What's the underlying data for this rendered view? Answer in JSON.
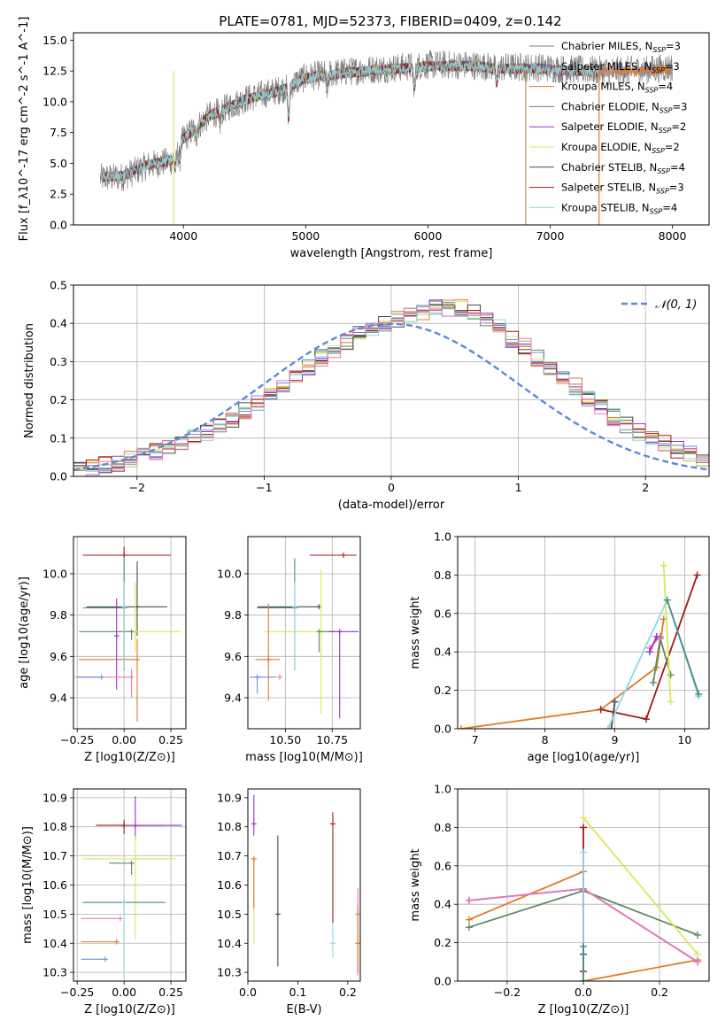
{
  "figure": {
    "title": "PLATE=0781, MJD=52373, FIBERID=0409, z=0.142"
  },
  "colors": {
    "Chabrier MILES": "#7f7f7f",
    "Salpeter MILES": "#6a8fd8",
    "Kroupa MILES": "#e07b28",
    "Chabrier ELODIE": "#5f8a62",
    "Salpeter ELODIE": "#9b30c8",
    "Kroupa ELODIE": "#d9e85a",
    "Chabrier STELIB": "#4a4a4a",
    "Salpeter STELIB": "#a01818",
    "Kroupa STELIB": "#8fd9e0",
    "pink": "#e67bb5"
  },
  "chart_data": [
    {
      "id": "spectrum",
      "type": "line",
      "xlabel": "wavelength [Angstrom, rest frame]",
      "ylabel": "Flux [f_λ10^-17 erg cm^-2 s^-1 A^-1]",
      "xlim": [
        3100,
        8300
      ],
      "ylim": [
        0,
        15.6
      ],
      "xticks": [
        4000,
        5000,
        6000,
        7000,
        8000
      ],
      "yticks": [
        0.0,
        2.5,
        5.0,
        7.5,
        10.0,
        12.5,
        15.0
      ],
      "legend_position": "top-right",
      "grid": false,
      "legend": [
        {
          "name": "Chabrier MILES",
          "subscript": "SSP",
          "n": "=3"
        },
        {
          "name": "Salpeter MILES",
          "subscript": "SSP",
          "n": "=3"
        },
        {
          "name": "Kroupa MILES",
          "subscript": "SSP",
          "n": "=4"
        },
        {
          "name": "Chabrier ELODIE",
          "subscript": "SSP",
          "n": "=3"
        },
        {
          "name": "Salpeter ELODIE",
          "subscript": "SSP",
          "n": "=2"
        },
        {
          "name": "Kroupa ELODIE",
          "subscript": "SSP",
          "n": "=2"
        },
        {
          "name": "Chabrier STELIB",
          "subscript": "SSP",
          "n": "=4"
        },
        {
          "name": "Salpeter STELIB",
          "subscript": "SSP",
          "n": "=3"
        },
        {
          "name": "Kroupa STELIB",
          "subscript": "SSP",
          "n": "=4"
        }
      ],
      "continuum": {
        "x": [
          3320,
          3500,
          3700,
          3900,
          4000,
          4200,
          4500,
          4800,
          5000,
          5200,
          5500,
          5800,
          6000,
          6300,
          6600,
          6900,
          7200,
          7500,
          7800,
          8000
        ],
        "y": [
          3.8,
          3.9,
          4.8,
          5.2,
          7.0,
          8.8,
          10.2,
          11.0,
          12.0,
          12.3,
          12.6,
          12.8,
          13.0,
          13.0,
          12.8,
          12.8,
          12.6,
          12.5,
          12.6,
          12.8
        ]
      },
      "drop_lines_x": [
        3920,
        6800,
        7400
      ]
    },
    {
      "id": "residuals",
      "type": "histogram",
      "xlabel": "(data-model)/error",
      "ylabel": "Normed distribution",
      "xlim": [
        -2.5,
        2.5
      ],
      "ylim": [
        0,
        0.5
      ],
      "xticks": [
        -2,
        -1,
        0,
        1,
        2
      ],
      "yticks": [
        0.0,
        0.1,
        0.2,
        0.3,
        0.4,
        0.5
      ],
      "grid": true,
      "legend_position": "top-right",
      "legend": [
        {
          "name": "N(0,1)",
          "style": "dashed",
          "color": "#5b8bd6"
        }
      ],
      "bin_width": 0.1,
      "bin_start": -2.5,
      "base_values": [
        0.02,
        0.022,
        0.03,
        0.035,
        0.045,
        0.055,
        0.065,
        0.075,
        0.085,
        0.1,
        0.115,
        0.13,
        0.15,
        0.17,
        0.19,
        0.21,
        0.235,
        0.26,
        0.285,
        0.31,
        0.33,
        0.35,
        0.37,
        0.385,
        0.4,
        0.41,
        0.42,
        0.43,
        0.44,
        0.44,
        0.44,
        0.43,
        0.41,
        0.39,
        0.36,
        0.34,
        0.31,
        0.285,
        0.26,
        0.235,
        0.2,
        0.18,
        0.155,
        0.135,
        0.115,
        0.1,
        0.085,
        0.07,
        0.06,
        0.05
      ]
    },
    {
      "id": "age_vs_Z",
      "type": "errorbar",
      "xlabel": "Z [log10(Z/Z⊙)]",
      "ylabel": "age  [log10(age/yr)]",
      "xlim": [
        -0.27,
        0.33
      ],
      "ylim": [
        9.25,
        10.18
      ],
      "xticks": [
        -0.25,
        0.0,
        0.25
      ],
      "yticks": [
        9.4,
        9.6,
        9.8,
        10.0
      ],
      "grid": true,
      "points": [
        {
          "c": "#a01818",
          "x": 0.0,
          "xe": [
            0.22,
            0.25
          ],
          "y": 10.09,
          "ye": [
            0.0,
            0.04
          ]
        },
        {
          "c": "#4a4a4a",
          "x": 0.07,
          "xe": [
            0.27,
            0.16
          ],
          "y": 9.84,
          "ye": [
            0.14,
            0.22
          ]
        },
        {
          "c": "#4a8a8a",
          "x": 0.0,
          "xe": [
            0.22,
            0.0
          ],
          "y": 9.835,
          "ye": [
            0.3,
            0.24
          ]
        },
        {
          "c": "#d9e85a",
          "x": 0.06,
          "xe": [
            0.05,
            0.24
          ],
          "y": 9.72,
          "ye": [
            0.1,
            0.24
          ]
        },
        {
          "c": "#5f8a62",
          "x": 0.04,
          "xe": [
            0.28,
            0.0
          ],
          "y": 9.72,
          "ye": [
            0.04,
            0.0
          ]
        },
        {
          "c": "#e07b28",
          "x": 0.07,
          "xe": [
            0.31,
            0.0
          ],
          "y": 9.585,
          "ye": [
            0.3,
            0.1
          ]
        },
        {
          "c": "#9b30c8",
          "x": -0.04,
          "xe": [
            0.0,
            0.0
          ],
          "y": 9.7,
          "ye": [
            0.26,
            0.18
          ]
        },
        {
          "c": "#e67bb5",
          "x": 0.04,
          "xe": [
            0.28,
            0.0
          ],
          "y": 9.5,
          "ye": [
            0.1,
            0.04
          ]
        },
        {
          "c": "#6a8fd8",
          "x": -0.12,
          "xe": [
            0.14,
            0.0
          ],
          "y": 9.5,
          "ye": [
            0.0,
            0.0
          ]
        },
        {
          "c": "#8fd9e0",
          "x": 0.0,
          "xe": [
            0.0,
            0.0
          ],
          "y": 9.84,
          "ye": [
            0.3,
            0.12
          ]
        }
      ]
    },
    {
      "id": "age_vs_mass",
      "type": "errorbar",
      "xlabel": "mass [log10(M/M⊙)]",
      "ylabel": "",
      "xlim": [
        10.3,
        10.9
      ],
      "ylim": [
        9.25,
        10.18
      ],
      "xticks": [
        10.5,
        10.75
      ],
      "yticks": [
        9.4,
        9.6,
        9.8,
        10.0
      ],
      "grid": true,
      "points": [
        {
          "c": "#a01818",
          "x": 10.81,
          "xe": [
            0.18,
            0.07
          ],
          "y": 10.09,
          "ye": [
            0.0,
            0.0
          ]
        },
        {
          "c": "#4a4a4a",
          "x": 10.68,
          "xe": [
            0.33,
            0.0
          ],
          "y": 9.84,
          "ye": [
            0.0,
            0.0
          ]
        },
        {
          "c": "#4a8a8a",
          "x": 10.55,
          "xe": [
            0.2,
            0.0
          ],
          "y": 9.835,
          "ye": [
            0.3,
            0.24
          ]
        },
        {
          "c": "#d9e85a",
          "x": 10.69,
          "xe": [
            0.3,
            0.08
          ],
          "y": 9.72,
          "ye": [
            0.4,
            0.3
          ]
        },
        {
          "c": "#5f8a62",
          "x": 10.68,
          "xe": [
            0.0,
            0.08
          ],
          "y": 9.72,
          "ye": [
            0.1,
            0.0
          ]
        },
        {
          "c": "#e07b28",
          "x": 10.41,
          "xe": [
            0.07,
            0.06
          ],
          "y": 9.585,
          "ye": [
            0.2,
            0.27
          ]
        },
        {
          "c": "#9b30c8",
          "x": 10.79,
          "xe": [
            0.06,
            0.1
          ],
          "y": 9.72,
          "ye": [
            0.42,
            0.0
          ]
        },
        {
          "c": "#e67bb5",
          "x": 10.47,
          "xe": [
            0.0,
            0.0
          ],
          "y": 9.5,
          "ye": [
            0.0,
            0.0
          ]
        },
        {
          "c": "#6a8fd8",
          "x": 10.35,
          "xe": [
            0.04,
            0.1
          ],
          "y": 9.5,
          "ye": [
            0.08,
            0.0
          ]
        },
        {
          "c": "#8fd9e0",
          "x": 10.55,
          "xe": [
            0.0,
            0.0
          ],
          "y": 9.84,
          "ye": [
            0.3,
            0.12
          ]
        }
      ]
    },
    {
      "id": "weight_vs_age",
      "type": "line",
      "xlabel": "age  [log10(age/yr)]",
      "ylabel": "mass weight",
      "xlim": [
        6.75,
        10.35
      ],
      "ylim": [
        0,
        1.0
      ],
      "xticks": [
        7,
        8,
        9,
        10
      ],
      "yticks": [
        0.0,
        0.2,
        0.4,
        0.6,
        0.8,
        1.0
      ],
      "grid": true,
      "series": [
        {
          "c": "#e07b28",
          "x": [
            6.8,
            8.8,
            9.6,
            9.7
          ],
          "y": [
            0.0,
            0.1,
            0.32,
            0.57
          ]
        },
        {
          "c": "#a01818",
          "x": [
            8.8,
            9.45,
            10.18
          ],
          "y": [
            0.1,
            0.05,
            0.8
          ]
        },
        {
          "c": "#5f8a62",
          "x": [
            9.55,
            9.65,
            9.8
          ],
          "y": [
            0.24,
            0.47,
            0.28
          ]
        },
        {
          "c": "#e67bb5",
          "x": [
            9.5,
            9.65
          ],
          "y": [
            0.42,
            0.48
          ]
        },
        {
          "c": "#9b30c8",
          "x": [
            9.5,
            9.6
          ],
          "y": [
            0.4,
            0.48
          ]
        },
        {
          "c": "#d9e85a",
          "x": [
            9.7,
            9.8
          ],
          "y": [
            0.85,
            0.14
          ]
        },
        {
          "c": "#4a4a4a",
          "x": [
            8.95,
            9.0
          ],
          "y": [
            0.0,
            0.14
          ]
        },
        {
          "c": "#8fd9e0",
          "x": [
            8.9,
            9.75,
            10.2
          ],
          "y": [
            0.0,
            0.67,
            0.17
          ]
        },
        {
          "c": "#4a8a8a",
          "x": [
            9.75,
            10.2
          ],
          "y": [
            0.67,
            0.18
          ]
        }
      ]
    },
    {
      "id": "mass_vs_Z",
      "type": "errorbar",
      "xlabel": "Z [log10(Z/Z⊙)]",
      "ylabel": "mass [log10(M/M⊙)]",
      "xlim": [
        -0.27,
        0.33
      ],
      "ylim": [
        10.27,
        10.93
      ],
      "xticks": [
        -0.25,
        0.0,
        0.25
      ],
      "yticks": [
        10.3,
        10.4,
        10.5,
        10.6,
        10.7,
        10.8,
        10.9
      ],
      "grid": true,
      "points": [
        {
          "c": "#a01818",
          "x": 0.0,
          "xe": [
            0.15,
            0.21
          ],
          "y": 10.805,
          "ye": [
            0.03,
            0.02
          ]
        },
        {
          "c": "#9b30c8",
          "x": 0.06,
          "xe": [
            0.06,
            0.25
          ],
          "y": 10.805,
          "ye": [
            0.05,
            0.1
          ]
        },
        {
          "c": "#d9e85a",
          "x": 0.06,
          "xe": [
            0.28,
            0.22
          ],
          "y": 10.69,
          "ye": [
            0.28,
            0.08
          ]
        },
        {
          "c": "#5f8a62",
          "x": 0.04,
          "xe": [
            0.12,
            0.0
          ],
          "y": 10.675,
          "ye": [
            0.04,
            0.0
          ]
        },
        {
          "c": "#4a8a8a",
          "x": 0.0,
          "xe": [
            0.22,
            0.22
          ],
          "y": 10.54,
          "ye": [
            0.0,
            0.0
          ]
        },
        {
          "c": "#e67bb5",
          "x": -0.02,
          "xe": [
            0.21,
            0.0
          ],
          "y": 10.485,
          "ye": [
            0.0,
            0.0
          ]
        },
        {
          "c": "#e07b28",
          "x": -0.04,
          "xe": [
            0.19,
            0.0
          ],
          "y": 10.405,
          "ye": [
            0.0,
            0.0
          ]
        },
        {
          "c": "#6a8fd8",
          "x": -0.1,
          "xe": [
            0.13,
            0.0
          ],
          "y": 10.345,
          "ye": [
            0.0,
            0.0
          ]
        },
        {
          "c": "#8fd9e0",
          "x": 0.0,
          "xe": [
            0.0,
            0.0
          ],
          "y": 10.54,
          "ye": [
            0.25,
            0.0
          ]
        }
      ]
    },
    {
      "id": "mass_vs_EBV",
      "type": "errorbar",
      "xlabel": "E(B-V)",
      "ylabel": "",
      "xlim": [
        0.0,
        0.225
      ],
      "ylim": [
        10.27,
        10.93
      ],
      "xticks": [
        0.0,
        0.1,
        0.2
      ],
      "yticks": [
        10.3,
        10.4,
        10.5,
        10.6,
        10.7,
        10.8,
        10.9
      ],
      "grid": false,
      "points": [
        {
          "c": "#9b30c8",
          "x": 0.012,
          "xe": [
            0,
            0
          ],
          "y": 10.81,
          "ye": [
            0.04,
            0.1
          ]
        },
        {
          "c": "#d9e85a",
          "x": 0.012,
          "xe": [
            0,
            0
          ],
          "y": 10.69,
          "ye": [
            0.29,
            0.0
          ]
        },
        {
          "c": "#e07b28",
          "x": 0.012,
          "xe": [
            0,
            0
          ],
          "y": 10.69,
          "ye": [
            0.17,
            0.0
          ]
        },
        {
          "c": "#4a4a4a",
          "x": 0.06,
          "xe": [
            0,
            0
          ],
          "y": 10.5,
          "ye": [
            0.18,
            0.27
          ]
        },
        {
          "c": "#a01818",
          "x": 0.17,
          "xe": [
            0,
            0
          ],
          "y": 10.81,
          "ye": [
            0.34,
            0.04
          ]
        },
        {
          "c": "#8fd9e0",
          "x": 0.17,
          "xe": [
            0,
            0
          ],
          "y": 10.4,
          "ye": [
            0.05,
            0.07
          ]
        },
        {
          "c": "#e67bb5",
          "x": 0.22,
          "xe": [
            0,
            0
          ],
          "y": 10.5,
          "ye": [
            0.21,
            0.09
          ]
        },
        {
          "c": "#e07b28",
          "x": 0.22,
          "xe": [
            0,
            0
          ],
          "y": 10.4,
          "ye": [
            0.1,
            0.13
          ]
        }
      ]
    },
    {
      "id": "weight_vs_Z",
      "type": "line",
      "xlabel": "Z [log10(Z/Z⊙)]",
      "ylabel": "mass weight",
      "xlim": [
        -0.33,
        0.33
      ],
      "ylim": [
        0,
        1.0
      ],
      "xticks": [
        -0.2,
        0.0,
        0.2
      ],
      "yticks": [
        0.0,
        0.2,
        0.4,
        0.6,
        0.8,
        1.0
      ],
      "grid": true,
      "series": [
        {
          "c": "#e07b28",
          "x": [
            -0.3,
            0.0,
            0.0,
            0.3
          ],
          "y": [
            0.32,
            0.57,
            0.0,
            0.11
          ]
        },
        {
          "c": "#5f8a62",
          "x": [
            -0.3,
            0.0,
            0.3
          ],
          "y": [
            0.28,
            0.47,
            0.24
          ]
        },
        {
          "c": "#9b30c8",
          "x": [
            -0.3,
            0.0,
            0.3
          ],
          "y": [
            0.42,
            0.48,
            0.1
          ]
        },
        {
          "c": "#e67bb5",
          "x": [
            -0.3,
            0.0,
            0.3
          ],
          "y": [
            0.42,
            0.48,
            0.1
          ]
        },
        {
          "c": "#d9e85a",
          "x": [
            0.0,
            0.3
          ],
          "y": [
            0.85,
            0.14
          ]
        },
        {
          "c": "#a01818",
          "x": [
            0.0,
            0.0
          ],
          "y": [
            0.8,
            0.05
          ]
        },
        {
          "c": "#4a4a4a",
          "x": [
            0.0,
            0.0
          ],
          "y": [
            0.14,
            0.0
          ]
        },
        {
          "c": "#8fd9e0",
          "x": [
            0.0,
            0.0
          ],
          "y": [
            0.67,
            0.0
          ]
        },
        {
          "c": "#4a8a8a",
          "x": [
            0.0,
            0.0
          ],
          "y": [
            0.18,
            0.0
          ]
        }
      ]
    }
  ]
}
